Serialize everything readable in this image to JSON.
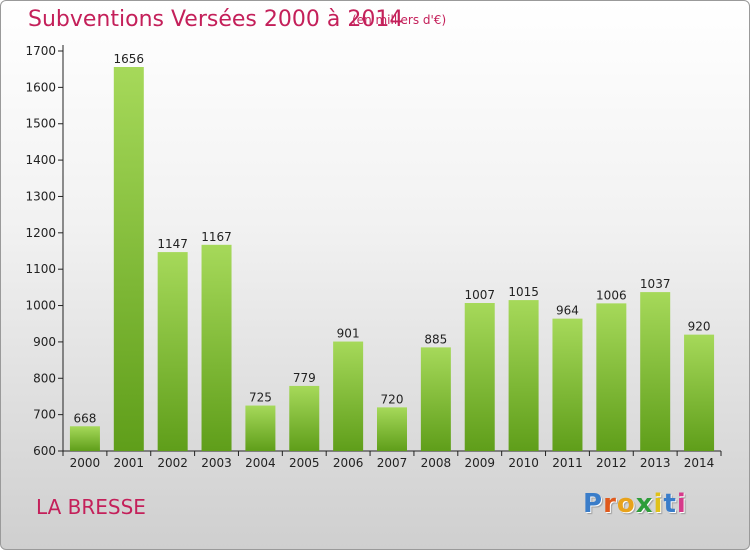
{
  "title": "Subventions Versées 2000 à 2014",
  "subtitle": "(en milliers d'€)",
  "commune": "LA BRESSE",
  "logo": {
    "text": "Proxiti",
    "letters": [
      "P",
      "r",
      "o",
      "x",
      "i",
      "t",
      "i"
    ],
    "colors": [
      "#3a7dc9",
      "#e05a1c",
      "#e8a21a",
      "#2e9d3a",
      "#e0c11a",
      "#3a7dc9",
      "#d63a8a"
    ]
  },
  "colors": {
    "title": "#c4205a",
    "bar_light": "#a6d95a",
    "bar_dark": "#5f9e1a"
  },
  "chart_data": {
    "type": "bar",
    "title": "Subventions Versées 2000 à 2014",
    "subtitle": "(en milliers d'€)",
    "categories": [
      "2000",
      "2001",
      "2002",
      "2003",
      "2004",
      "2005",
      "2006",
      "2007",
      "2008",
      "2009",
      "2010",
      "2011",
      "2012",
      "2013",
      "2014"
    ],
    "values": [
      668,
      1656,
      1147,
      1167,
      725,
      779,
      901,
      720,
      885,
      1007,
      1015,
      964,
      1006,
      1037,
      920
    ],
    "ylim": [
      600,
      1700
    ],
    "yticks": [
      600,
      700,
      800,
      900,
      1000,
      1100,
      1200,
      1300,
      1400,
      1500,
      1600,
      1700
    ],
    "grid": false
  }
}
